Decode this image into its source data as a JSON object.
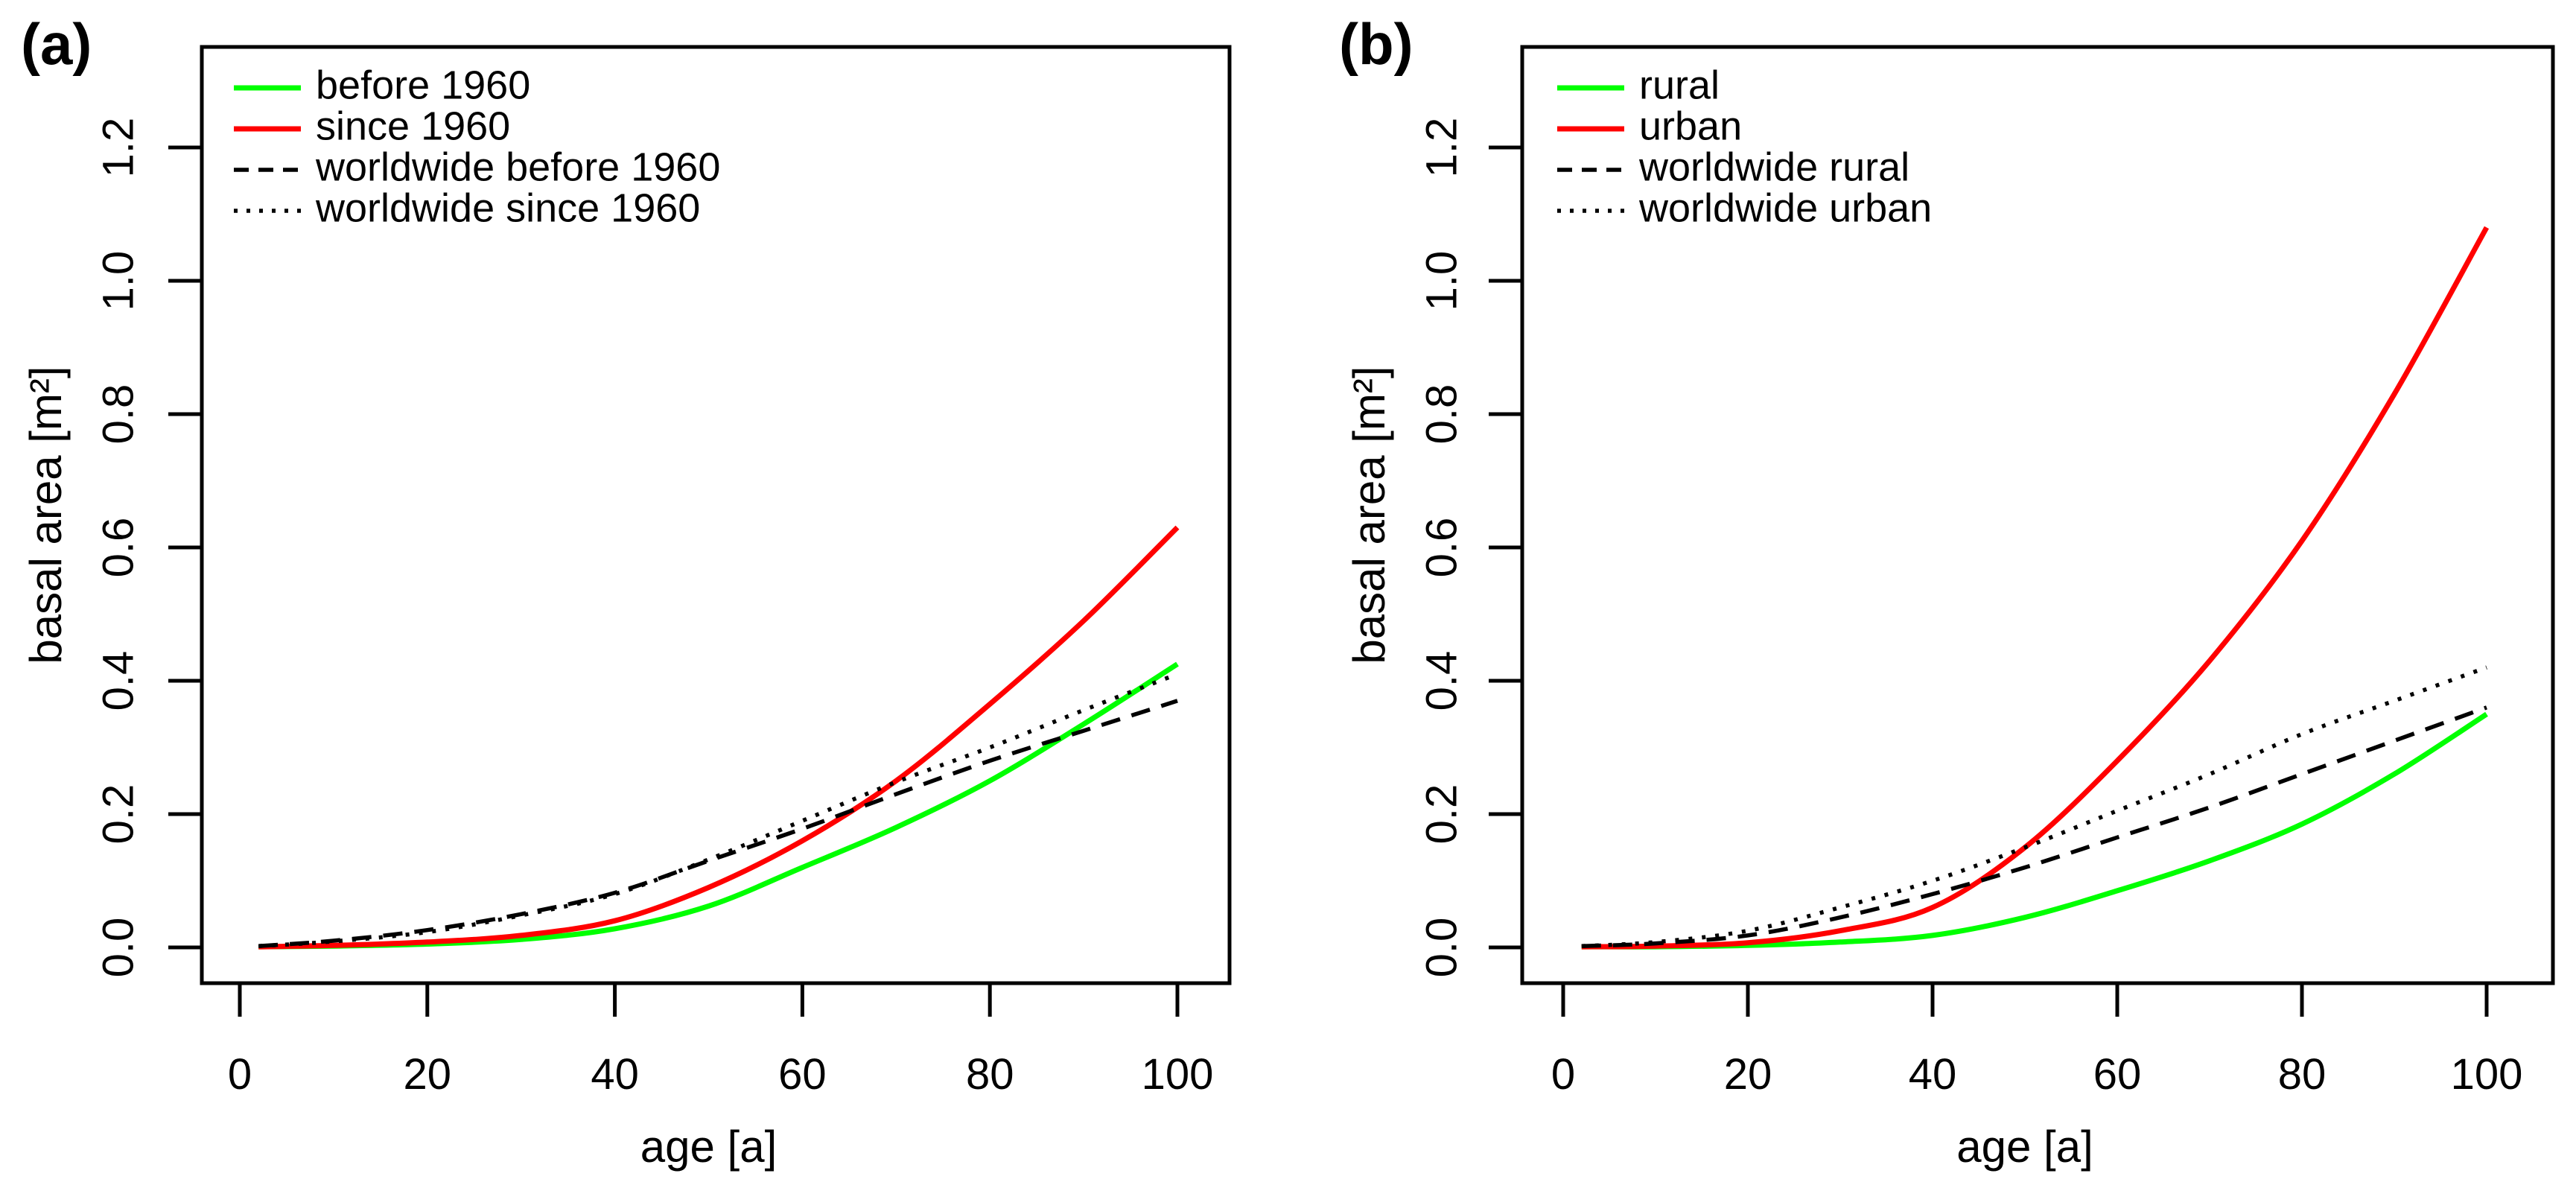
{
  "page": {
    "background": "#FFFFFF",
    "text_color": "#000000"
  },
  "panels": [
    {
      "id": "a",
      "label": "(a)"
    },
    {
      "id": "b",
      "label": "(b)"
    }
  ],
  "chart_data": [
    {
      "type": "line",
      "panel_label": "(a)",
      "xlabel": "age [a]",
      "ylabel": "basal area [m²]",
      "xlim": [
        0,
        100
      ],
      "ylim": [
        0,
        1.2
      ],
      "grid": false,
      "legend_position": "top-left",
      "x_ticks": {
        "values": [
          0,
          20,
          40,
          60,
          80,
          100
        ],
        "labels": [
          "0",
          "20",
          "40",
          "60",
          "80",
          "100"
        ]
      },
      "y_ticks": {
        "values": [
          0,
          0.2,
          0.4,
          0.6,
          0.8,
          1.0,
          1.2
        ],
        "labels": [
          "0.0",
          "0.2",
          "0.4",
          "0.6",
          "0.8",
          "1.0",
          "1.2"
        ]
      },
      "x": [
        2,
        10,
        20,
        30,
        40,
        50,
        60,
        70,
        80,
        90,
        100
      ],
      "series": [
        {
          "name": "before 1960",
          "color": "#00FF00",
          "line_style": "solid",
          "values": [
            0.001,
            0.002,
            0.005,
            0.012,
            0.028,
            0.062,
            0.12,
            0.18,
            0.25,
            0.335,
            0.425
          ]
        },
        {
          "name": "since 1960",
          "color": "#FF0000",
          "line_style": "solid",
          "values": [
            0.001,
            0.003,
            0.008,
            0.018,
            0.04,
            0.09,
            0.16,
            0.25,
            0.365,
            0.49,
            0.63
          ]
        },
        {
          "name": "worldwide before 1960",
          "color": "#000000",
          "line_style": "dashed",
          "values": [
            0.002,
            0.01,
            0.026,
            0.05,
            0.082,
            0.13,
            0.178,
            0.23,
            0.28,
            0.325,
            0.37
          ]
        },
        {
          "name": "worldwide since 1960",
          "color": "#000000",
          "line_style": "dotted",
          "values": [
            0.002,
            0.009,
            0.023,
            0.048,
            0.08,
            0.132,
            0.19,
            0.248,
            0.3,
            0.356,
            0.41
          ]
        }
      ]
    },
    {
      "type": "line",
      "panel_label": "(b)",
      "xlabel": "age [a]",
      "ylabel": "basal area [m²]",
      "xlim": [
        0,
        100
      ],
      "ylim": [
        0,
        1.2
      ],
      "grid": false,
      "legend_position": "top-left",
      "x_ticks": {
        "values": [
          0,
          20,
          40,
          60,
          80,
          100
        ],
        "labels": [
          "0",
          "20",
          "40",
          "60",
          "80",
          "100"
        ]
      },
      "y_ticks": {
        "values": [
          0,
          0.2,
          0.4,
          0.6,
          0.8,
          1.0,
          1.2
        ],
        "labels": [
          "0.0",
          "0.2",
          "0.4",
          "0.6",
          "0.8",
          "1.0",
          "1.2"
        ]
      },
      "x": [
        2,
        10,
        20,
        30,
        40,
        50,
        60,
        70,
        80,
        90,
        100
      ],
      "series": [
        {
          "name": "rural",
          "color": "#00FF00",
          "line_style": "solid",
          "values": [
            0.001,
            0.001,
            0.003,
            0.008,
            0.018,
            0.045,
            0.085,
            0.13,
            0.185,
            0.26,
            0.35
          ]
        },
        {
          "name": "urban",
          "color": "#FF0000",
          "line_style": "solid",
          "values": [
            0.001,
            0.002,
            0.007,
            0.025,
            0.06,
            0.15,
            0.28,
            0.43,
            0.61,
            0.83,
            1.08
          ]
        },
        {
          "name": "worldwide rural",
          "color": "#000000",
          "line_style": "dashed",
          "values": [
            0.002,
            0.006,
            0.018,
            0.045,
            0.08,
            0.12,
            0.165,
            0.21,
            0.26,
            0.31,
            0.36
          ]
        },
        {
          "name": "worldwide urban",
          "color": "#000000",
          "line_style": "dotted",
          "values": [
            0.002,
            0.008,
            0.025,
            0.06,
            0.1,
            0.15,
            0.205,
            0.26,
            0.32,
            0.37,
            0.42
          ]
        }
      ]
    }
  ]
}
